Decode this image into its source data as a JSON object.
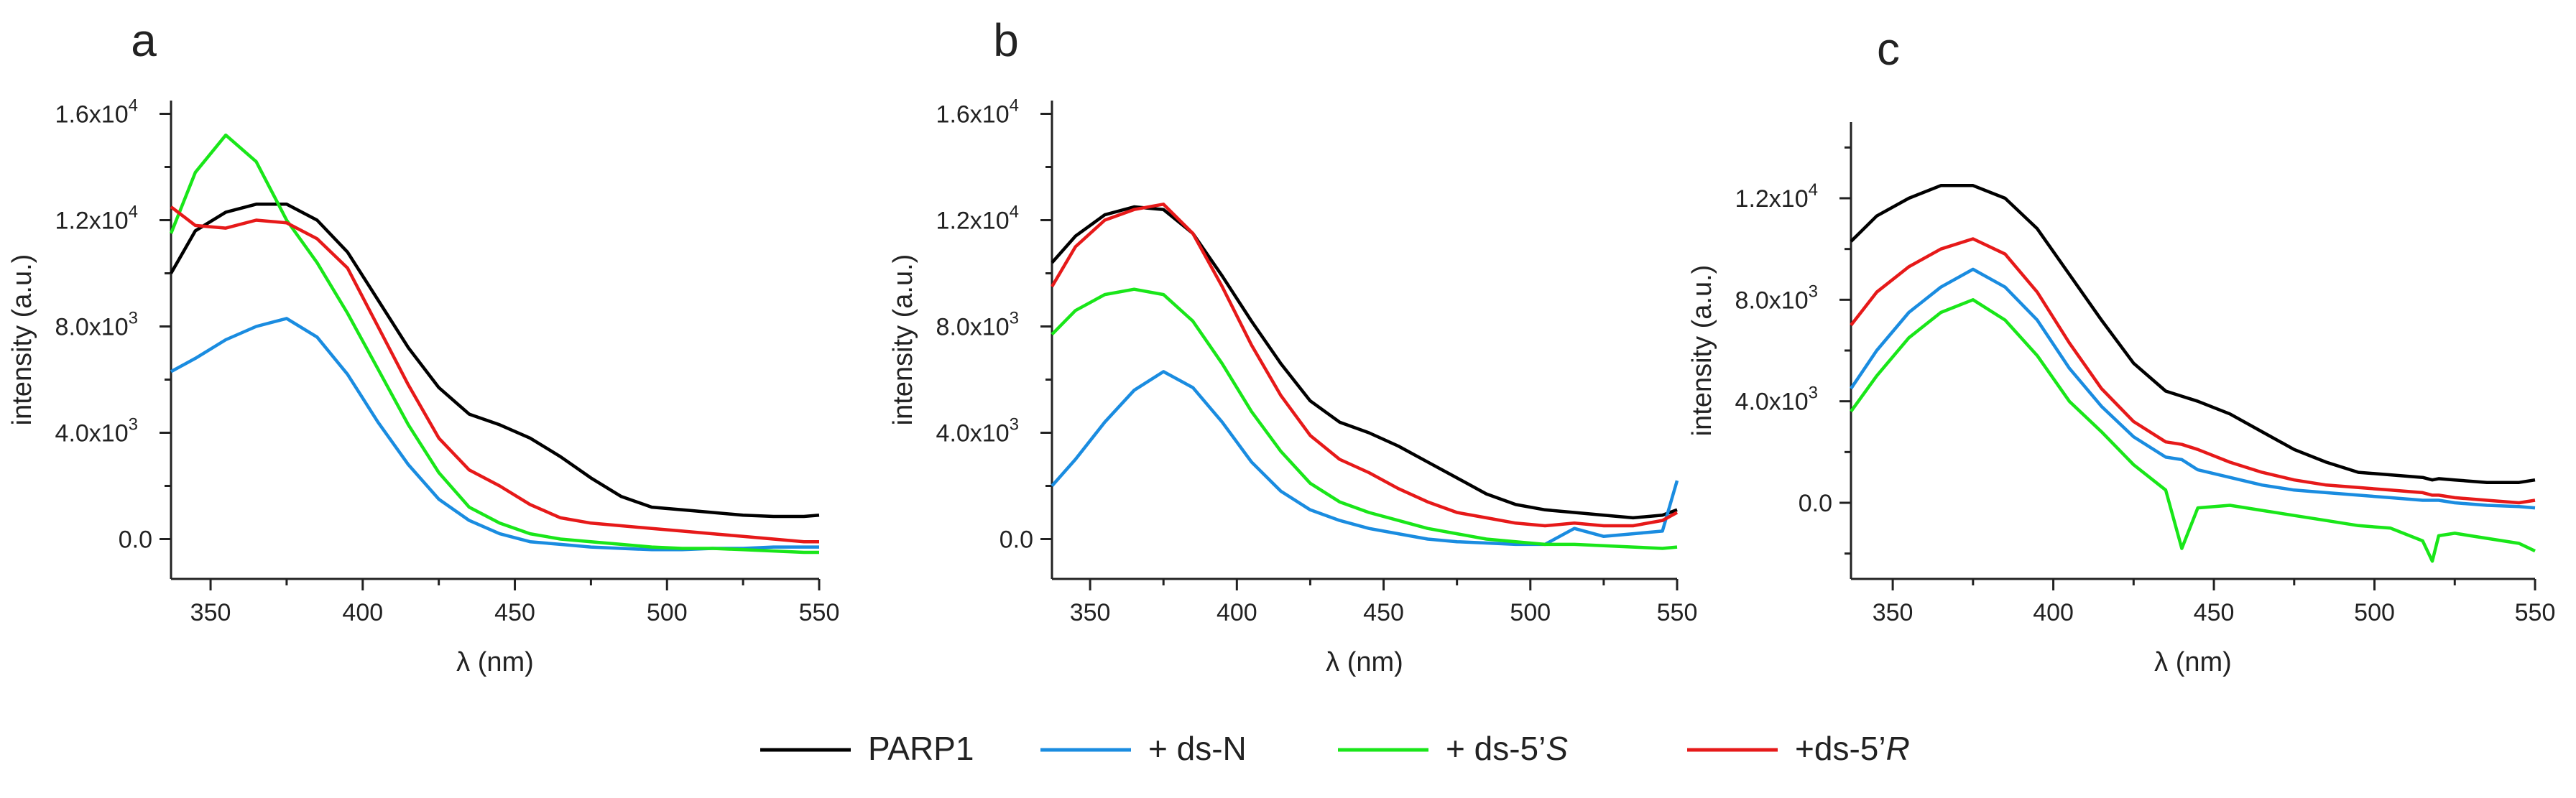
{
  "figure": {
    "legend": [
      {
        "label": "PARP1",
        "color": "#000000"
      },
      {
        "label": "+ ds-N",
        "color": "#1a8ce0"
      },
      {
        "label_prefix": "+ ds-5’",
        "label_italic": "S",
        "color": "#19e619"
      },
      {
        "label_prefix": "+ds-5’",
        "label_italic": "R",
        "color": "#e61919"
      }
    ]
  },
  "chart_data": [
    {
      "panel": "a",
      "type": "line",
      "xlabel": "λ (nm)",
      "ylabel": "intensity (a.u.)",
      "xlim": [
        337,
        550
      ],
      "ylim": [
        -1500,
        16500
      ],
      "xticks": [
        350,
        400,
        450,
        500,
        550
      ],
      "yticks": [
        {
          "value": 0,
          "label": "0.0"
        },
        {
          "value": 4000,
          "base": "4.0x10",
          "exp": "3"
        },
        {
          "value": 8000,
          "base": "8.0x10",
          "exp": "3"
        },
        {
          "value": 12000,
          "base": "1.2x10",
          "exp": "4"
        },
        {
          "value": 16000,
          "base": "1.6x10",
          "exp": "4"
        }
      ],
      "x": [
        337,
        345,
        355,
        365,
        375,
        385,
        395,
        405,
        415,
        425,
        435,
        445,
        455,
        465,
        475,
        485,
        495,
        505,
        515,
        525,
        535,
        545,
        550
      ],
      "series": [
        {
          "name": "PARP1",
          "color": "#000000",
          "values": [
            10000,
            11600,
            12300,
            12600,
            12600,
            12000,
            10800,
            9000,
            7200,
            5700,
            4700,
            4300,
            3800,
            3100,
            2300,
            1600,
            1200,
            1100,
            1000,
            900,
            850,
            850,
            900
          ]
        },
        {
          "name": "+ ds-N",
          "color": "#1a8ce0",
          "values": [
            6300,
            6800,
            7500,
            8000,
            8300,
            7600,
            6200,
            4400,
            2800,
            1500,
            700,
            200,
            -100,
            -200,
            -300,
            -350,
            -400,
            -400,
            -350,
            -350,
            -300,
            -300,
            -300
          ]
        },
        {
          "name": "+ ds-5’S",
          "color": "#19e619",
          "values": [
            11500,
            13800,
            15200,
            14200,
            12000,
            10400,
            8500,
            6400,
            4300,
            2500,
            1200,
            600,
            200,
            0,
            -100,
            -200,
            -300,
            -350,
            -350,
            -400,
            -450,
            -500,
            -500
          ]
        },
        {
          "name": "+ds-5’R",
          "color": "#e61919",
          "values": [
            12500,
            11800,
            11700,
            12000,
            11900,
            11300,
            10200,
            8000,
            5800,
            3800,
            2600,
            2000,
            1300,
            800,
            600,
            500,
            400,
            300,
            200,
            100,
            0,
            -100,
            -100
          ]
        }
      ]
    },
    {
      "panel": "b",
      "type": "line",
      "xlabel": "λ (nm)",
      "ylabel": "intensity (a.u.)",
      "xlim": [
        337,
        550
      ],
      "ylim": [
        -1500,
        16500
      ],
      "xticks": [
        350,
        400,
        450,
        500,
        550
      ],
      "yticks": [
        {
          "value": 0,
          "label": "0.0"
        },
        {
          "value": 4000,
          "base": "4.0x10",
          "exp": "3"
        },
        {
          "value": 8000,
          "base": "8.0x10",
          "exp": "3"
        },
        {
          "value": 12000,
          "base": "1.2x10",
          "exp": "4"
        },
        {
          "value": 16000,
          "base": "1.6x10",
          "exp": "4"
        }
      ],
      "x": [
        337,
        345,
        355,
        365,
        375,
        385,
        395,
        405,
        415,
        425,
        435,
        445,
        455,
        465,
        475,
        485,
        495,
        505,
        515,
        525,
        535,
        545,
        550
      ],
      "series": [
        {
          "name": "PARP1",
          "color": "#000000",
          "values": [
            10400,
            11400,
            12200,
            12500,
            12400,
            11500,
            9900,
            8200,
            6600,
            5200,
            4400,
            4000,
            3500,
            2900,
            2300,
            1700,
            1300,
            1100,
            1000,
            900,
            800,
            900,
            1100
          ]
        },
        {
          "name": "+ ds-N",
          "color": "#1a8ce0",
          "values": [
            2000,
            3000,
            4400,
            5600,
            6300,
            5700,
            4400,
            2900,
            1800,
            1100,
            700,
            400,
            200,
            0,
            -100,
            -150,
            -200,
            -200,
            400,
            100,
            200,
            300,
            2200
          ]
        },
        {
          "name": "+ ds-5’S",
          "color": "#19e619",
          "values": [
            7700,
            8600,
            9200,
            9400,
            9200,
            8200,
            6600,
            4800,
            3300,
            2100,
            1400,
            1000,
            700,
            400,
            200,
            0,
            -100,
            -200,
            -200,
            -250,
            -300,
            -350,
            -300
          ]
        },
        {
          "name": "+ds-5’R",
          "color": "#e61919",
          "values": [
            9500,
            11000,
            12000,
            12400,
            12600,
            11500,
            9500,
            7300,
            5400,
            3900,
            3000,
            2500,
            1900,
            1400,
            1000,
            800,
            600,
            500,
            600,
            500,
            500,
            700,
            1000
          ]
        }
      ]
    },
    {
      "panel": "c",
      "type": "line",
      "xlabel": "λ (nm)",
      "ylabel": "intensity (a.u.)",
      "xlim": [
        337,
        550
      ],
      "ylim": [
        -3000,
        15000
      ],
      "xticks": [
        350,
        400,
        450,
        500,
        550
      ],
      "yticks": [
        {
          "value": 0,
          "label": "0.0"
        },
        {
          "value": 4000,
          "base": "4.0x10",
          "exp": "3"
        },
        {
          "value": 8000,
          "base": "8.0x10",
          "exp": "3"
        },
        {
          "value": 12000,
          "base": "1.2x10",
          "exp": "4"
        }
      ],
      "x": [
        337,
        345,
        355,
        365,
        375,
        385,
        395,
        405,
        415,
        425,
        435,
        440,
        445,
        455,
        465,
        475,
        485,
        495,
        505,
        515,
        518,
        520,
        525,
        535,
        545,
        550
      ],
      "series": [
        {
          "name": "PARP1",
          "color": "#000000",
          "values": [
            10300,
            11300,
            12000,
            12500,
            12500,
            12000,
            10800,
            9000,
            7200,
            5500,
            4400,
            4200,
            4000,
            3500,
            2800,
            2100,
            1600,
            1200,
            1100,
            1000,
            900,
            950,
            900,
            800,
            800,
            900
          ]
        },
        {
          "name": "+ ds-N",
          "color": "#1a8ce0",
          "values": [
            4500,
            6000,
            7500,
            8500,
            9200,
            8500,
            7200,
            5300,
            3800,
            2600,
            1800,
            1700,
            1300,
            1000,
            700,
            500,
            400,
            300,
            200,
            100,
            100,
            100,
            0,
            -100,
            -150,
            -200
          ]
        },
        {
          "name": "+ ds-5’S",
          "color": "#19e619",
          "values": [
            3600,
            5000,
            6500,
            7500,
            8000,
            7200,
            5800,
            4000,
            2800,
            1500,
            500,
            -1800,
            -200,
            -100,
            -300,
            -500,
            -700,
            -900,
            -1000,
            -1500,
            -2300,
            -1300,
            -1200,
            -1400,
            -1600,
            -1900
          ]
        },
        {
          "name": "+ds-5’R",
          "color": "#e61919",
          "values": [
            7000,
            8300,
            9300,
            10000,
            10400,
            9800,
            8300,
            6300,
            4500,
            3200,
            2400,
            2300,
            2100,
            1600,
            1200,
            900,
            700,
            600,
            500,
            400,
            300,
            300,
            200,
            100,
            0,
            100
          ]
        }
      ]
    }
  ]
}
